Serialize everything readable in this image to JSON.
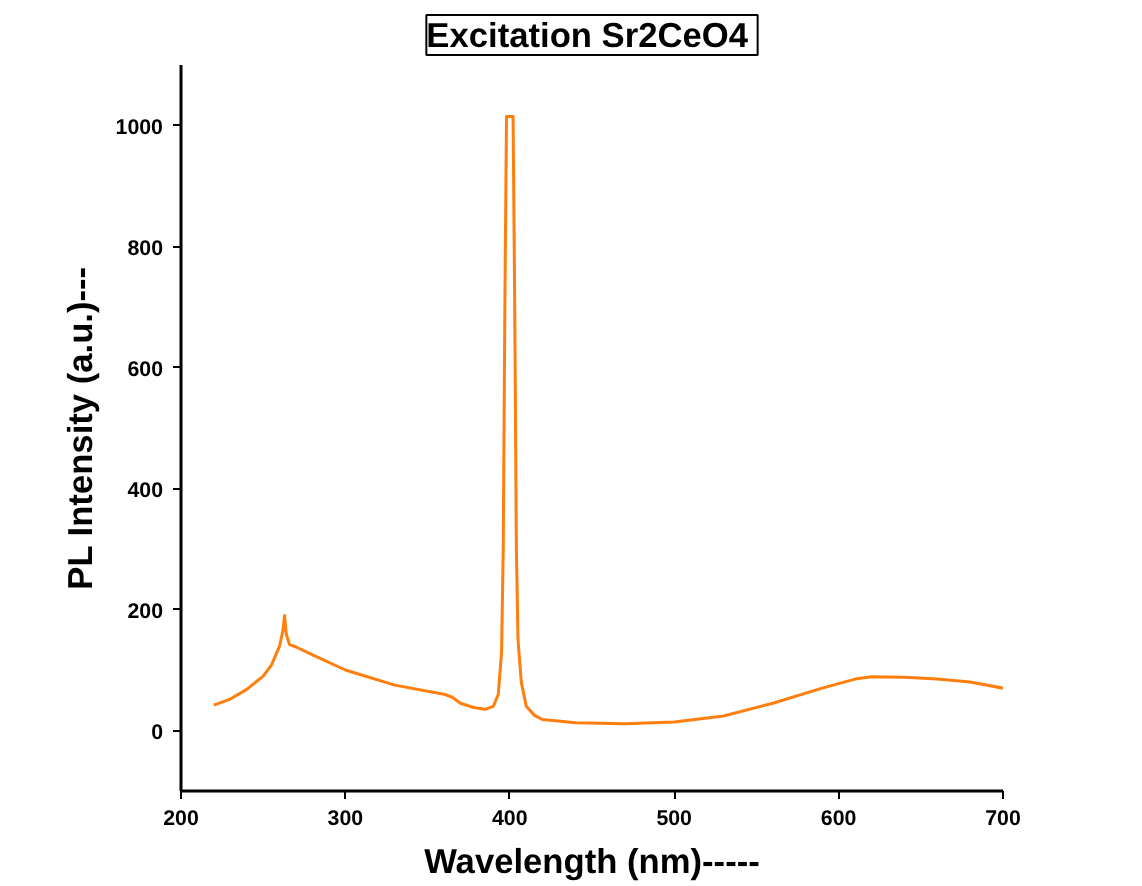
{
  "chart_data": {
    "type": "line",
    "title": "Excitation  Sr2CeO4",
    "xlabel": "Wavelength (nm)-----",
    "ylabel": "PL Intensity (a.u.)---",
    "x": [
      220,
      230,
      240,
      250,
      255,
      260,
      262,
      263,
      264,
      266,
      270,
      280,
      300,
      330,
      360,
      365,
      370,
      378,
      385,
      390,
      393,
      395,
      396,
      397,
      398,
      400,
      402,
      403,
      404,
      405,
      407,
      410,
      415,
      420,
      440,
      470,
      500,
      530,
      560,
      590,
      610,
      620,
      640,
      660,
      680,
      700
    ],
    "series": [
      {
        "color": "#ff7f0e",
        "values": [
          42,
          52,
          68,
          90,
          108,
          140,
          165,
          190,
          160,
          142,
          138,
          125,
          100,
          75,
          60,
          55,
          45,
          38,
          35,
          40,
          60,
          130,
          300,
          700,
          1015,
          1015,
          1015,
          700,
          300,
          150,
          80,
          40,
          25,
          18,
          13,
          11,
          14,
          24,
          45,
          70,
          85,
          89,
          88,
          85,
          80,
          70
        ]
      }
    ],
    "xlim": [
      200,
      700
    ],
    "ylim": [
      -100,
      1100
    ],
    "xticks": [
      200,
      300,
      400,
      500,
      600,
      700
    ],
    "yticks": [
      0,
      200,
      400,
      600,
      800,
      1000
    ],
    "grid": false,
    "line_style": "solid",
    "marker": "none"
  }
}
